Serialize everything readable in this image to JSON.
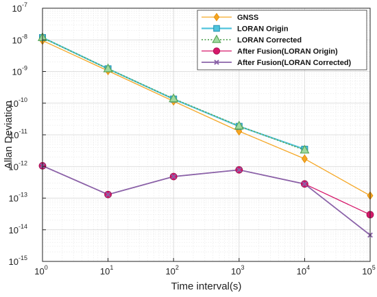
{
  "chart_data": {
    "type": "line",
    "xlabel": "Time interval(s)",
    "ylabel": "Allan Deviation",
    "x_scale": "log",
    "y_scale": "log",
    "xlim": [
      1,
      100000
    ],
    "ylim": [
      1e-15,
      1e-07
    ],
    "x_ticks": [
      {
        "base": "10",
        "exp": "0"
      },
      {
        "base": "10",
        "exp": "1"
      },
      {
        "base": "10",
        "exp": "2"
      },
      {
        "base": "10",
        "exp": "3"
      },
      {
        "base": "10",
        "exp": "4"
      },
      {
        "base": "10",
        "exp": "5"
      }
    ],
    "y_ticks": [
      {
        "base": "10",
        "exp": "-15"
      },
      {
        "base": "10",
        "exp": "-14"
      },
      {
        "base": "10",
        "exp": "-13"
      },
      {
        "base": "10",
        "exp": "-12"
      },
      {
        "base": "10",
        "exp": "-11"
      },
      {
        "base": "10",
        "exp": "-10"
      },
      {
        "base": "10",
        "exp": "-9"
      },
      {
        "base": "10",
        "exp": "-8"
      },
      {
        "base": "10",
        "exp": "-7"
      }
    ],
    "grid": true,
    "minor_grid": true,
    "legend_position": "top-right",
    "series": [
      {
        "name": "GNSS",
        "color": "#f5a623",
        "marker": "diamond",
        "line_style": "solid",
        "x": [
          1,
          10,
          100,
          1000,
          10000,
          100000
        ],
        "y": [
          9.5e-09,
          1.05e-09,
          1.15e-10,
          1.3e-11,
          1.75e-12,
          1.2e-13
        ]
      },
      {
        "name": "LORAN Origin",
        "color": "#4fc3dc",
        "marker": "square",
        "line_style": "solid",
        "x": [
          1,
          10,
          100,
          1000,
          10000
        ],
        "y": [
          1.18e-08,
          1.22e-09,
          1.35e-10,
          1.85e-11,
          3.5e-12
        ]
      },
      {
        "name": "LORAN Corrected",
        "color": "#5aa65a",
        "marker": "triangle",
        "line_style": "dotted",
        "x": [
          1,
          10,
          100,
          1000,
          10000
        ],
        "y": [
          1.18e-08,
          1.22e-09,
          1.38e-10,
          1.9e-11,
          3.3e-12
        ]
      },
      {
        "name": "After Fusion(LORAN Origin)",
        "color": "#d6176a",
        "marker": "circle",
        "line_style": "solid",
        "x": [
          1,
          10,
          100,
          1000,
          10000,
          100000
        ],
        "y": [
          1.05e-12,
          1.3e-13,
          4.8e-13,
          7.8e-13,
          2.8e-13,
          3e-14
        ]
      },
      {
        "name": "After Fusion(LORAN Corrected)",
        "color": "#8a62a8",
        "marker": "x",
        "line_style": "solid",
        "x": [
          1,
          10,
          100,
          1000,
          10000,
          100000
        ],
        "y": [
          1.05e-12,
          1.3e-13,
          4.8e-13,
          7.8e-13,
          2.8e-13,
          6.8e-15
        ]
      }
    ]
  }
}
